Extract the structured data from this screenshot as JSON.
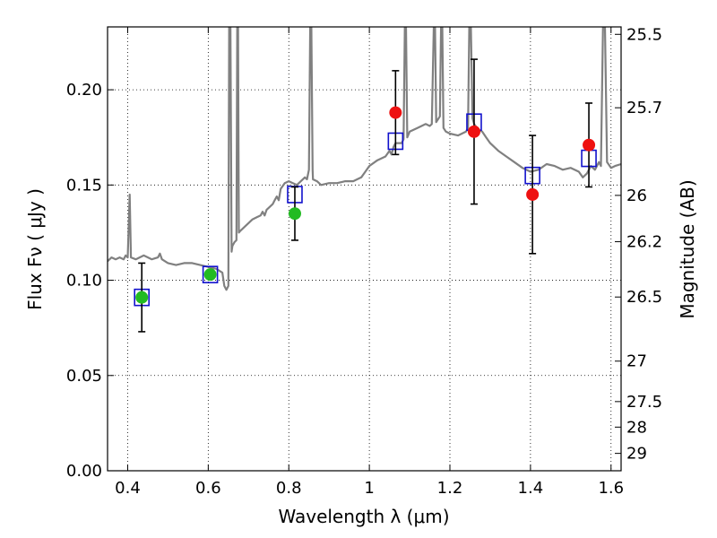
{
  "chart_data": {
    "type": "scatter",
    "xlabel": "Wavelength  λ (μm)",
    "ylabel": "Flux  Fν  ( μJy )",
    "y2label": "Magnitude (AB)",
    "xlim": [
      0.35,
      1.625
    ],
    "ylim": [
      0.0,
      0.233
    ],
    "grid": true,
    "x_ticks": [
      0.4,
      0.6,
      0.8,
      1.0,
      1.2,
      1.4,
      1.6
    ],
    "x_tick_labels": [
      "0.4",
      "0.6",
      "0.8",
      "1",
      "1.2",
      "1.4",
      "1.6"
    ],
    "y_ticks": [
      0.0,
      0.05,
      0.1,
      0.15,
      0.2
    ],
    "y_tick_labels": [
      "0.00",
      "0.05",
      "0.10",
      "0.15",
      "0.20"
    ],
    "mag_ticks": [
      25.5,
      25.7,
      26,
      26.2,
      26.5,
      27,
      27.5,
      28,
      29
    ],
    "mag_tick_labels": [
      "25.5",
      "25.7",
      "26",
      "26.2",
      "26.5",
      "27",
      "27.5",
      "28",
      "29"
    ],
    "colors": {
      "model": "#808080",
      "optical": "#22bb22",
      "nir": "#ee1111",
      "model_phot": "#1111cc",
      "errorbar": "#000000",
      "grid": "#000000"
    },
    "series": [
      {
        "style": "line",
        "color_key": "model",
        "points": [
          [
            0.35,
            0.11
          ],
          [
            0.36,
            0.112
          ],
          [
            0.37,
            0.111
          ],
          [
            0.38,
            0.112
          ],
          [
            0.39,
            0.111
          ],
          [
            0.395,
            0.113
          ],
          [
            0.4,
            0.112
          ],
          [
            0.405,
            0.145
          ],
          [
            0.408,
            0.112
          ],
          [
            0.42,
            0.111
          ],
          [
            0.44,
            0.113
          ],
          [
            0.46,
            0.111
          ],
          [
            0.475,
            0.112
          ],
          [
            0.48,
            0.114
          ],
          [
            0.485,
            0.111
          ],
          [
            0.5,
            0.109
          ],
          [
            0.52,
            0.108
          ],
          [
            0.54,
            0.109
          ],
          [
            0.56,
            0.109
          ],
          [
            0.58,
            0.108
          ],
          [
            0.6,
            0.107
          ],
          [
            0.62,
            0.106
          ],
          [
            0.635,
            0.104
          ],
          [
            0.64,
            0.097
          ],
          [
            0.645,
            0.095
          ],
          [
            0.65,
            0.097
          ],
          [
            0.652,
            0.235
          ],
          [
            0.655,
            0.235
          ],
          [
            0.658,
            0.115
          ],
          [
            0.66,
            0.118
          ],
          [
            0.665,
            0.12
          ],
          [
            0.67,
            0.121
          ],
          [
            0.672,
            0.233
          ],
          [
            0.674,
            0.233
          ],
          [
            0.676,
            0.125
          ],
          [
            0.68,
            0.126
          ],
          [
            0.69,
            0.128
          ],
          [
            0.7,
            0.13
          ],
          [
            0.71,
            0.132
          ],
          [
            0.72,
            0.133
          ],
          [
            0.73,
            0.134
          ],
          [
            0.735,
            0.136
          ],
          [
            0.74,
            0.134
          ],
          [
            0.745,
            0.137
          ],
          [
            0.75,
            0.138
          ],
          [
            0.76,
            0.14
          ],
          [
            0.765,
            0.142
          ],
          [
            0.77,
            0.144
          ],
          [
            0.775,
            0.142
          ],
          [
            0.78,
            0.148
          ],
          [
            0.79,
            0.151
          ],
          [
            0.8,
            0.152
          ],
          [
            0.81,
            0.151
          ],
          [
            0.82,
            0.15
          ],
          [
            0.83,
            0.152
          ],
          [
            0.84,
            0.154
          ],
          [
            0.845,
            0.153
          ],
          [
            0.85,
            0.158
          ],
          [
            0.853,
            0.233
          ],
          [
            0.856,
            0.233
          ],
          [
            0.859,
            0.158
          ],
          [
            0.86,
            0.153
          ],
          [
            0.87,
            0.152
          ],
          [
            0.88,
            0.15
          ],
          [
            0.9,
            0.151
          ],
          [
            0.92,
            0.151
          ],
          [
            0.94,
            0.152
          ],
          [
            0.96,
            0.152
          ],
          [
            0.98,
            0.154
          ],
          [
            0.99,
            0.157
          ],
          [
            1.0,
            0.16
          ],
          [
            1.02,
            0.163
          ],
          [
            1.04,
            0.165
          ],
          [
            1.05,
            0.168
          ],
          [
            1.055,
            0.166
          ],
          [
            1.06,
            0.17
          ],
          [
            1.065,
            0.172
          ],
          [
            1.07,
            0.172
          ],
          [
            1.08,
            0.172
          ],
          [
            1.085,
            0.174
          ],
          [
            1.088,
            0.233
          ],
          [
            1.091,
            0.233
          ],
          [
            1.094,
            0.175
          ],
          [
            1.1,
            0.178
          ],
          [
            1.12,
            0.18
          ],
          [
            1.14,
            0.182
          ],
          [
            1.15,
            0.181
          ],
          [
            1.155,
            0.182
          ],
          [
            1.16,
            0.233
          ],
          [
            1.163,
            0.233
          ],
          [
            1.166,
            0.183
          ],
          [
            1.175,
            0.186
          ],
          [
            1.178,
            0.233
          ],
          [
            1.181,
            0.233
          ],
          [
            1.184,
            0.18
          ],
          [
            1.19,
            0.178
          ],
          [
            1.2,
            0.177
          ],
          [
            1.22,
            0.176
          ],
          [
            1.24,
            0.178
          ],
          [
            1.245,
            0.18
          ],
          [
            1.248,
            0.233
          ],
          [
            1.252,
            0.233
          ],
          [
            1.256,
            0.185
          ],
          [
            1.26,
            0.182
          ],
          [
            1.27,
            0.179
          ],
          [
            1.28,
            0.178
          ],
          [
            1.29,
            0.175
          ],
          [
            1.3,
            0.172
          ],
          [
            1.32,
            0.168
          ],
          [
            1.34,
            0.165
          ],
          [
            1.36,
            0.162
          ],
          [
            1.38,
            0.159
          ],
          [
            1.4,
            0.157
          ],
          [
            1.42,
            0.158
          ],
          [
            1.44,
            0.161
          ],
          [
            1.46,
            0.16
          ],
          [
            1.48,
            0.158
          ],
          [
            1.5,
            0.159
          ],
          [
            1.52,
            0.157
          ],
          [
            1.53,
            0.154
          ],
          [
            1.54,
            0.156
          ],
          [
            1.55,
            0.16
          ],
          [
            1.56,
            0.158
          ],
          [
            1.57,
            0.162
          ],
          [
            1.575,
            0.16
          ],
          [
            1.58,
            0.233
          ],
          [
            1.585,
            0.233
          ],
          [
            1.59,
            0.162
          ],
          [
            1.6,
            0.159
          ],
          [
            1.61,
            0.16
          ],
          [
            1.625,
            0.161
          ]
        ]
      },
      {
        "style": "square-marker",
        "color_key": "model_phot",
        "points": [
          [
            0.435,
            0.091
          ],
          [
            0.605,
            0.103
          ],
          [
            0.815,
            0.145
          ],
          [
            1.065,
            0.173
          ],
          [
            1.26,
            0.183
          ],
          [
            1.405,
            0.155
          ],
          [
            1.545,
            0.164
          ]
        ]
      },
      {
        "style": "circle-marker",
        "color_key": "optical",
        "points": [
          [
            0.435,
            0.091
          ],
          [
            0.605,
            0.103
          ],
          [
            0.815,
            0.135
          ]
        ],
        "yerr": [
          0.018,
          null,
          0.014
        ]
      },
      {
        "style": "circle-marker",
        "color_key": "nir",
        "points": [
          [
            1.065,
            0.188
          ],
          [
            1.26,
            0.178
          ],
          [
            1.405,
            0.145
          ],
          [
            1.545,
            0.171
          ]
        ],
        "yerr": [
          0.022,
          0.038,
          0.031,
          0.022
        ]
      }
    ]
  }
}
